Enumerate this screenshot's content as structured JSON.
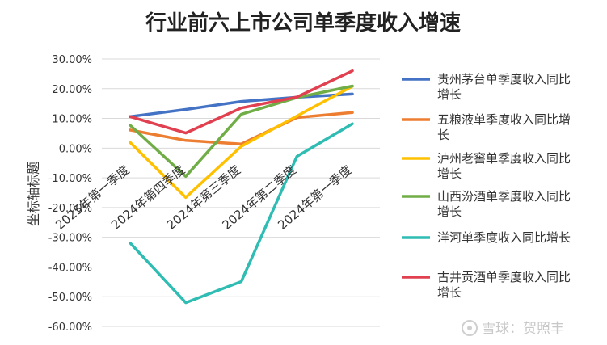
{
  "chart_data": {
    "type": "line",
    "title": "行业前六上市公司单季度收入增速",
    "ylabel": "坐标轴标题",
    "xlabel": "",
    "categories": [
      "2025年第一季度",
      "2024年第四季度",
      "2024年第三季度",
      "2024年第二季度",
      "2024年第一季度"
    ],
    "ylim": [
      -60,
      30
    ],
    "yticks": [
      "30.00%",
      "20.00%",
      "10.00%",
      "0.00%",
      "-10.00%",
      "-20.00%",
      "-30.00%",
      "-40.00%",
      "-50.00%",
      "-60.00%"
    ],
    "grid": true,
    "legend_position": "right",
    "series": [
      {
        "name": "贵州茅台单季度收入同比增长",
        "color": "#4472C4",
        "values": [
          10.6,
          13.0,
          15.7,
          17.1,
          18.2
        ]
      },
      {
        "name": "五粮液单季度收入同比增长",
        "color": "#ED7D31",
        "values": [
          6.1,
          2.6,
          1.4,
          10.3,
          12.0
        ]
      },
      {
        "name": "泸州老窖单季度收入同比增长",
        "color": "#FFC000",
        "values": [
          1.9,
          -16.6,
          0.6,
          10.8,
          20.8
        ]
      },
      {
        "name": "山西汾酒单季度收入同比增长",
        "color": "#70AD47",
        "values": [
          7.7,
          -9.5,
          11.4,
          17.0,
          20.9
        ]
      },
      {
        "name": "洋河单季度收入同比增长",
        "color": "#2EBCB3",
        "values": [
          -31.9,
          -52.0,
          -44.9,
          -2.8,
          8.2
        ]
      },
      {
        "name": "古井贡酒单季度收入同比增长",
        "color": "#E0404F",
        "values": [
          10.6,
          5.1,
          13.5,
          17.2,
          26.0
        ]
      }
    ]
  },
  "legend_lines": [
    [
      "贵州茅台单季度收入同比",
      "增长"
    ],
    [
      "五粮液单季度收入同比增",
      "长"
    ],
    [
      "泸州老窖单季度收入同比",
      "增长"
    ],
    [
      "山西汾酒单季度收入同比",
      "增长"
    ],
    [
      "洋河单季度收入同比增长"
    ],
    [
      "古井贡酒单季度收入同比",
      "增长"
    ]
  ],
  "watermark": "雪球：贺照丰",
  "watermark_icon": "snowball-logo-icon"
}
